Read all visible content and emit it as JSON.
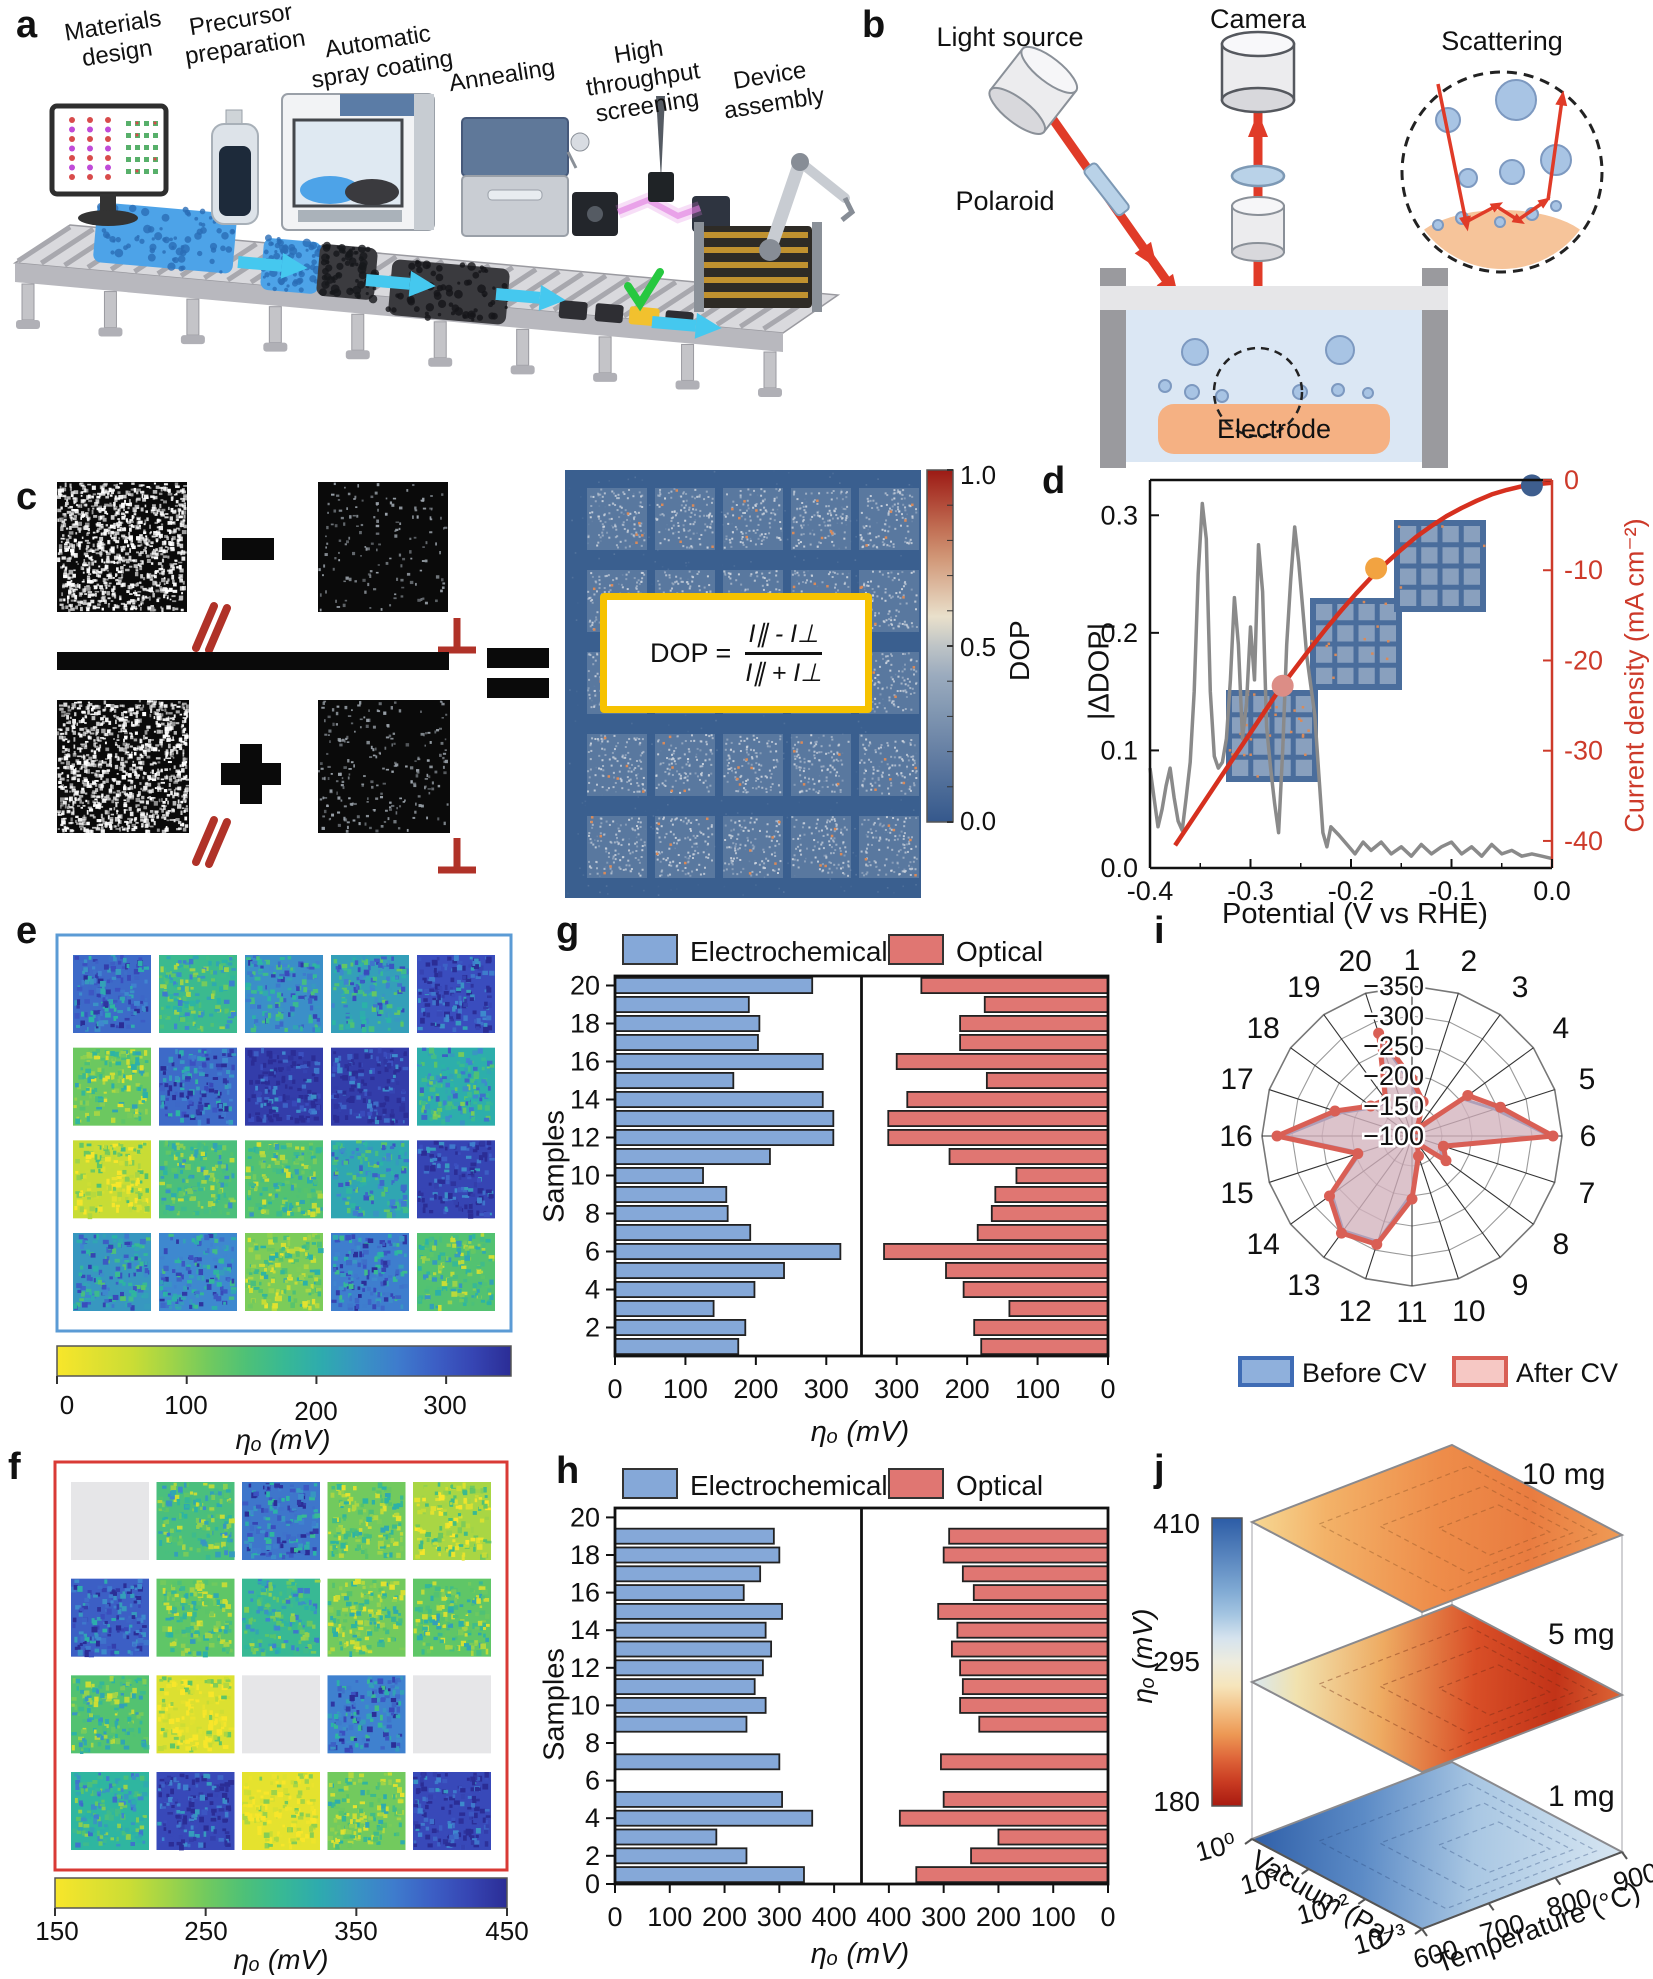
{
  "panels": {
    "a": {
      "label": "a",
      "steps": [
        "Materials\ndesign",
        "Precursor\npreparation",
        "Automatic\nspray coating",
        "Annealing",
        "High\nthroughput\nscreening",
        "Device\nassembly"
      ]
    },
    "b": {
      "label": "b",
      "light_source": "Light source",
      "camera": "Camera",
      "scattering": "Scattering",
      "polaroid": "Polaroid",
      "electrode": "Electrode"
    },
    "c": {
      "label": "c",
      "parallel_mark": "∥",
      "perp_mark": "⊥",
      "operators": {
        "minus": "−",
        "plus": "+",
        "equals": "="
      },
      "formula": {
        "lhs": "DOP =",
        "numerator": "I∥ - I⊥",
        "denominator": "I∥ + I⊥"
      },
      "colorbar": {
        "label": "DOP",
        "ticks": [
          "1.0",
          "0.5",
          "0.0"
        ]
      }
    },
    "d": {
      "label": "d",
      "xlabel": "Potential (V vs RHE)",
      "ylabel_left": "|ΔDOP|",
      "ylabel_right": "Current density (mA cm⁻²)",
      "chart_data": {
        "type": "line",
        "xticks": [
          -0.4,
          -0.3,
          -0.2,
          -0.1,
          0.0
        ],
        "yticks_left": [
          0.0,
          0.1,
          0.2,
          0.3
        ],
        "yticks_right": [
          0,
          -10,
          -20,
          -30,
          -40
        ],
        "series": [
          {
            "name": "|ΔDOP|",
            "color": "#8a8a8a",
            "points": [
              [
                -0.4,
                0.085
              ],
              [
                -0.396,
                0.06
              ],
              [
                -0.392,
                0.035
              ],
              [
                -0.388,
                0.05
              ],
              [
                -0.384,
                0.07
              ],
              [
                -0.38,
                0.085
              ],
              [
                -0.376,
                0.06
              ],
              [
                -0.372,
                0.04
              ],
              [
                -0.368,
                0.032
              ],
              [
                -0.364,
                0.06
              ],
              [
                -0.36,
                0.09
              ],
              [
                -0.356,
                0.15
              ],
              [
                -0.352,
                0.25
              ],
              [
                -0.348,
                0.31
              ],
              [
                -0.344,
                0.28
              ],
              [
                -0.34,
                0.15
              ],
              [
                -0.336,
                0.095
              ],
              [
                -0.332,
                0.085
              ],
              [
                -0.328,
                0.09
              ],
              [
                -0.324,
                0.11
              ],
              [
                -0.32,
                0.16
              ],
              [
                -0.316,
                0.23
              ],
              [
                -0.312,
                0.19
              ],
              [
                -0.308,
                0.11
              ],
              [
                -0.304,
                0.14
              ],
              [
                -0.3,
                0.205
              ],
              [
                -0.296,
                0.16
              ],
              [
                -0.292,
                0.275
              ],
              [
                -0.288,
                0.235
              ],
              [
                -0.284,
                0.12
              ],
              [
                -0.28,
                0.085
              ],
              [
                -0.276,
                0.055
              ],
              [
                -0.272,
                0.03
              ],
              [
                -0.268,
                0.1
              ],
              [
                -0.264,
                0.19
              ],
              [
                -0.26,
                0.245
              ],
              [
                -0.256,
                0.29
              ],
              [
                -0.252,
                0.26
              ],
              [
                -0.248,
                0.22
              ],
              [
                -0.244,
                0.18
              ],
              [
                -0.24,
                0.155
              ],
              [
                -0.236,
                0.13
              ],
              [
                -0.232,
                0.08
              ],
              [
                -0.228,
                0.03
              ],
              [
                -0.224,
                0.018
              ],
              [
                -0.22,
                0.035
              ],
              [
                -0.212,
                0.028
              ],
              [
                -0.204,
                0.02
              ],
              [
                -0.196,
                0.012
              ],
              [
                -0.188,
                0.022
              ],
              [
                -0.18,
                0.015
              ],
              [
                -0.17,
                0.022
              ],
              [
                -0.16,
                0.012
              ],
              [
                -0.15,
                0.018
              ],
              [
                -0.14,
                0.01
              ],
              [
                -0.13,
                0.02
              ],
              [
                -0.12,
                0.012
              ],
              [
                -0.11,
                0.018
              ],
              [
                -0.1,
                0.022
              ],
              [
                -0.09,
                0.012
              ],
              [
                -0.08,
                0.018
              ],
              [
                -0.07,
                0.01
              ],
              [
                -0.06,
                0.02
              ],
              [
                -0.05,
                0.012
              ],
              [
                -0.04,
                0.015
              ],
              [
                -0.03,
                0.01
              ],
              [
                -0.02,
                0.012
              ],
              [
                -0.01,
                0.01
              ],
              [
                0.0,
                0.008
              ]
            ]
          },
          {
            "name": "Current density",
            "color": "#d6301f",
            "points": [
              [
                -0.375,
                -40.5
              ],
              [
                -0.36,
                -38.0
              ],
              [
                -0.345,
                -35.5
              ],
              [
                -0.33,
                -33.0
              ],
              [
                -0.315,
                -30.5
              ],
              [
                -0.3,
                -28.0
              ],
              [
                -0.285,
                -25.5
              ],
              [
                -0.27,
                -23.0
              ],
              [
                -0.255,
                -20.8
              ],
              [
                -0.24,
                -18.6
              ],
              [
                -0.225,
                -16.5
              ],
              [
                -0.21,
                -14.5
              ],
              [
                -0.195,
                -12.6
              ],
              [
                -0.18,
                -10.8
              ],
              [
                -0.165,
                -9.2
              ],
              [
                -0.15,
                -7.7
              ],
              [
                -0.135,
                -6.3
              ],
              [
                -0.12,
                -5.1
              ],
              [
                -0.105,
                -4.0
              ],
              [
                -0.09,
                -3.1
              ],
              [
                -0.075,
                -2.3
              ],
              [
                -0.06,
                -1.6
              ],
              [
                -0.045,
                -1.1
              ],
              [
                -0.03,
                -0.7
              ],
              [
                -0.015,
                -0.45
              ],
              [
                0.0,
                -0.3
              ]
            ]
          }
        ],
        "markers": [
          {
            "x": -0.02,
            "y": -0.6,
            "color": "#3e5e8e"
          },
          {
            "x": -0.175,
            "y": -9.8,
            "color": "#f2a341"
          },
          {
            "x": -0.268,
            "y": -22.8,
            "color": "#dc8d86"
          }
        ]
      }
    },
    "e": {
      "label": "e",
      "border_color": "#5b9bd5",
      "colorbar": {
        "label": "ηₒ (mV)",
        "tick_values": [
          0,
          100,
          200,
          300
        ],
        "vmin": 0,
        "vmax": 350
      },
      "tile_values": [
        [
          280,
          170,
          240,
          220,
          310
        ],
        [
          120,
          280,
          330,
          330,
          200
        ],
        [
          60,
          150,
          140,
          210,
          320
        ],
        [
          230,
          250,
          110,
          260,
          140
        ]
      ]
    },
    "f": {
      "label": "f",
      "border_color": "#d93a35",
      "colorbar": {
        "label": "ηₒ (mV)",
        "tick_values": [
          150,
          250,
          350,
          450
        ],
        "vmin": 150,
        "vmax": 450
      },
      "tile_values": [
        [
          null,
          280,
          380,
          250,
          220
        ],
        [
          400,
          260,
          300,
          250,
          260
        ],
        [
          270,
          180,
          null,
          370,
          null
        ],
        [
          310,
          420,
          170,
          250,
          420
        ]
      ]
    },
    "g": {
      "label": "g",
      "samples_label": "Samples",
      "xlabel": "ηₒ (mV)",
      "legend": [
        "Electrochemical",
        "Optical"
      ],
      "chart_data": {
        "type": "bar",
        "orientation": "horizontal-butterfly",
        "categories": [
          1,
          2,
          3,
          4,
          5,
          6,
          7,
          8,
          9,
          10,
          11,
          12,
          13,
          14,
          15,
          16,
          17,
          18,
          19,
          20
        ],
        "series": [
          {
            "name": "Electrochemical",
            "values": [
              175,
              185,
              140,
              198,
              240,
              320,
              192,
              160,
              158,
              125,
              220,
              310,
              310,
              295,
              168,
              295,
              203,
              205,
              190,
              280
            ]
          },
          {
            "name": "Optical",
            "values": [
              180,
              190,
              140,
              205,
              230,
              318,
              185,
              165,
              160,
              130,
              225,
              312,
              312,
              285,
              172,
              300,
              210,
              210,
              175,
              265
            ]
          }
        ],
        "xmax": 350,
        "xticks": [
          0,
          100,
          200,
          300
        ],
        "yticks": [
          2,
          4,
          6,
          8,
          10,
          12,
          14,
          16,
          18,
          20
        ]
      }
    },
    "h": {
      "label": "h",
      "samples_label": "Samples",
      "xlabel": "ηₒ (mV)",
      "legend": [
        "Electrochemical",
        "Optical"
      ],
      "chart_data": {
        "type": "bar",
        "orientation": "horizontal-butterfly",
        "categories": [
          1,
          2,
          3,
          4,
          5,
          6,
          7,
          8,
          9,
          10,
          11,
          12,
          13,
          14,
          15,
          16,
          17,
          18,
          19,
          20
        ],
        "series": [
          {
            "name": "Electrochemical",
            "values": [
              345,
              240,
              185,
              360,
              305,
              null,
              300,
              null,
              240,
              275,
              255,
              270,
              285,
              275,
              305,
              235,
              265,
              300,
              290,
              null
            ]
          },
          {
            "name": "Optical",
            "values": [
              350,
              250,
              200,
              380,
              300,
              null,
              305,
              null,
              235,
              270,
              265,
              270,
              285,
              275,
              310,
              245,
              265,
              300,
              290,
              null
            ]
          }
        ],
        "xmax": 450,
        "xticks": [
          0,
          100,
          200,
          300,
          400
        ],
        "yticks": [
          0,
          2,
          4,
          6,
          8,
          10,
          12,
          14,
          16,
          18,
          20
        ]
      }
    },
    "i": {
      "label": "i",
      "legend": [
        "Before CV",
        "After CV"
      ],
      "chart_data": {
        "type": "radar",
        "categories": [
          1,
          2,
          3,
          4,
          5,
          6,
          7,
          8,
          9,
          10,
          11,
          12,
          13,
          14,
          15,
          16,
          17,
          18,
          19,
          20
        ],
        "rmin": -100,
        "rmax": -350,
        "rtick_labels": [
          "−350",
          "−300",
          "−250",
          "−200",
          "−150",
          "−100"
        ],
        "series": [
          {
            "name": "Before CV",
            "values": [
              -185,
              -150,
              -110,
              -205,
              -245,
              -330,
              -150,
              -160,
              -110,
              -130,
              -195,
              -285,
              -295,
              -265,
              -190,
              -315,
              -225,
              -180,
              -170,
              -270
            ]
          },
          {
            "name": "After CV",
            "values": [
              -195,
              -160,
              -115,
              -215,
              -255,
              -335,
              -155,
              -170,
              -115,
              -135,
              -205,
              -290,
              -300,
              -270,
              -195,
              -325,
              -235,
              -185,
              -175,
              -280
            ]
          }
        ]
      }
    },
    "j": {
      "label": "j",
      "colorbar": {
        "label": "ηₒ (mV)",
        "ticks": [
          "410",
          "295",
          "180"
        ]
      },
      "layer_labels": [
        "10 mg",
        "5 mg",
        "1 mg"
      ],
      "vacuum": {
        "label": "Vacuum (Pa)",
        "ticks": [
          "10⁰",
          "10⁻¹",
          "10⁻²",
          "10⁻³"
        ]
      },
      "temperature": {
        "label": "Temperature (°C)",
        "ticks": [
          "600",
          "700",
          "800",
          "900"
        ]
      }
    }
  }
}
